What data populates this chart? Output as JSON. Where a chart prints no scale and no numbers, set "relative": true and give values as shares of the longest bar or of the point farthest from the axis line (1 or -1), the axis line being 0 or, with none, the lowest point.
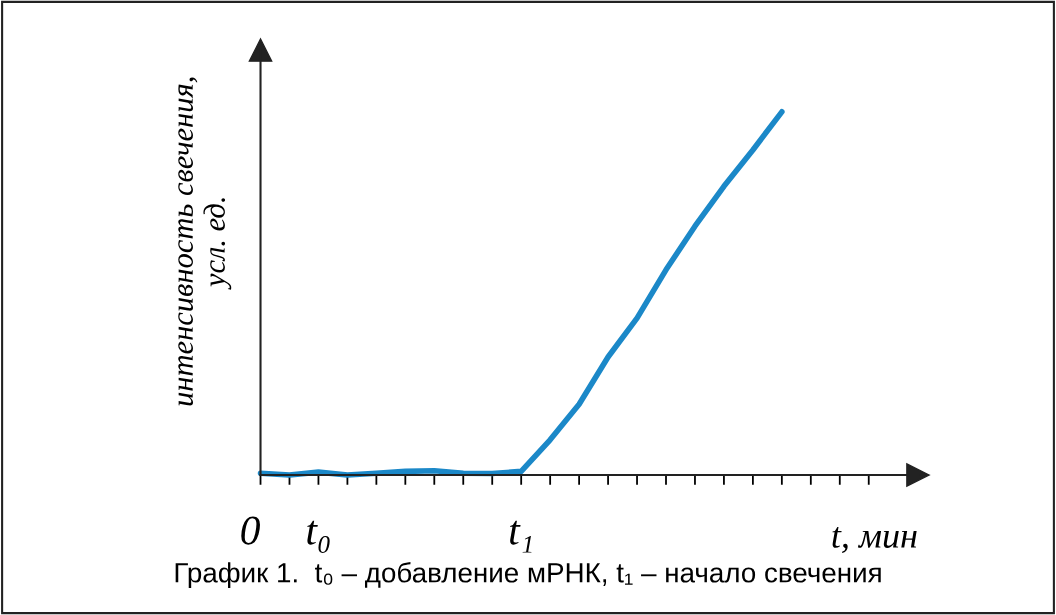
{
  "chart_data": {
    "type": "line",
    "relative": true,
    "ylabel": "интенсивность свечения,\nусл. ед.",
    "xlabel": "t, мин",
    "annotations": [
      "График 1.  t₀ – добавление мРНК, t₁ – начало свечения"
    ],
    "categories": [
      "0",
      null,
      "t₀",
      null,
      null,
      null,
      null,
      null,
      null,
      "t₁",
      null,
      null,
      null,
      null,
      null,
      null,
      null,
      null,
      null,
      null,
      null,
      null
    ],
    "legend": false,
    "marker": "none",
    "line_style": "solid",
    "series": [
      {
        "color": "#1b88c8",
        "values": [
          0.005,
          0.0,
          0.008,
          0.0,
          0.005,
          0.01,
          0.012,
          0.005,
          0.004,
          0.01,
          0.097,
          0.195,
          0.325,
          0.432,
          0.565,
          0.685,
          0.795,
          0.895,
          1,
          null,
          null,
          null
        ]
      }
    ]
  }
}
